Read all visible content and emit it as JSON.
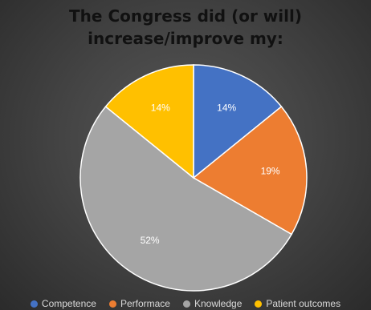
{
  "chart_data": {
    "type": "pie",
    "title_lines": [
      "The Congress did (or will)",
      "increase/improve my:"
    ],
    "categories": [
      "Competence",
      "Performace",
      "Knowledge",
      "Patient outcomes"
    ],
    "values": [
      14,
      19,
      52,
      14
    ],
    "data_labels": [
      "14%",
      "19%",
      "52%",
      "14%"
    ],
    "colors": [
      "#4472C4",
      "#ED7D31",
      "#A5A5A5",
      "#FFC000"
    ],
    "legend_position": "bottom"
  }
}
